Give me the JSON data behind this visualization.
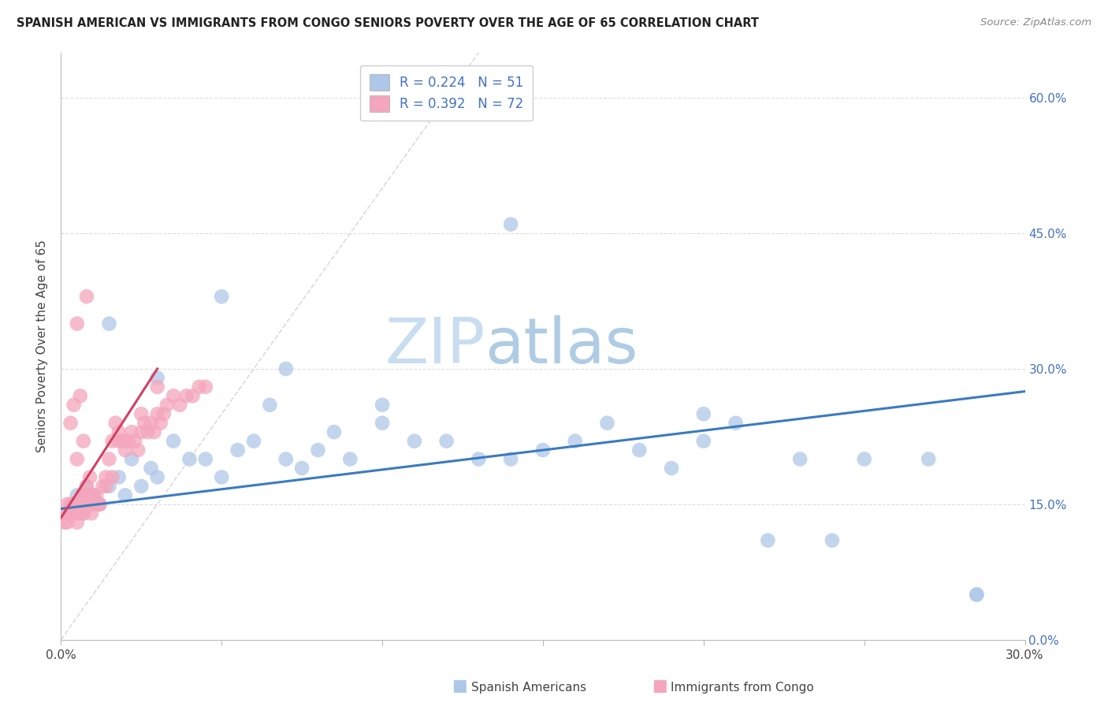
{
  "title": "SPANISH AMERICAN VS IMMIGRANTS FROM CONGO SENIORS POVERTY OVER THE AGE OF 65 CORRELATION CHART",
  "source": "Source: ZipAtlas.com",
  "ylabel_label": "Seniors Poverty Over the Age of 65",
  "legend1_label": "R = 0.224   N = 51",
  "legend2_label": "R = 0.392   N = 72",
  "legend_bottom1": "Spanish Americans",
  "legend_bottom2": "Immigrants from Congo",
  "blue_color": "#aec7e8",
  "pink_color": "#f4a6bc",
  "blue_line_color": "#3a7bbf",
  "pink_line_color": "#d4405f",
  "diag_color": "#cccccc",
  "watermark_zip_color": "#c5d8ee",
  "watermark_atlas_color": "#c5d8ee",
  "right_tick_color": "#4472c4",
  "xlim": [
    0,
    30
  ],
  "ylim_data": [
    0,
    65
  ],
  "ylim_display": [
    0,
    65
  ],
  "x_ticks": [
    0,
    5,
    10,
    15,
    20,
    25,
    30
  ],
  "x_tick_labels": [
    "0.0%",
    "",
    "",
    "",
    "",
    "",
    "30.0%"
  ],
  "y_ticks": [
    0,
    15,
    30,
    45,
    60
  ],
  "y_tick_labels": [
    "",
    "15.0%",
    "30.0%",
    "45.0%",
    "60.0%"
  ],
  "blue_x": [
    0.3,
    0.5,
    0.6,
    0.8,
    1.0,
    1.2,
    1.5,
    1.8,
    2.0,
    2.2,
    2.5,
    2.8,
    3.0,
    3.5,
    4.0,
    4.5,
    5.0,
    5.5,
    6.0,
    6.5,
    7.0,
    7.5,
    8.0,
    8.5,
    9.0,
    10.0,
    11.0,
    12.0,
    13.0,
    14.0,
    15.0,
    16.0,
    17.0,
    18.0,
    19.0,
    20.0,
    21.0,
    22.0,
    23.0,
    24.0,
    25.0,
    27.0,
    28.5,
    1.5,
    3.0,
    5.0,
    7.0,
    10.0,
    14.0,
    20.0,
    28.5
  ],
  "blue_y": [
    14,
    16,
    15,
    17,
    16,
    15,
    17,
    18,
    16,
    20,
    17,
    19,
    18,
    22,
    20,
    20,
    18,
    21,
    22,
    26,
    20,
    19,
    21,
    23,
    20,
    24,
    22,
    22,
    20,
    20,
    21,
    22,
    24,
    21,
    19,
    22,
    24,
    11,
    20,
    11,
    20,
    20,
    5,
    35,
    29,
    38,
    30,
    26,
    46,
    25,
    5
  ],
  "pink_x": [
    0.1,
    0.15,
    0.2,
    0.25,
    0.3,
    0.35,
    0.4,
    0.45,
    0.5,
    0.55,
    0.6,
    0.65,
    0.7,
    0.75,
    0.8,
    0.85,
    0.9,
    0.95,
    1.0,
    1.1,
    1.2,
    1.3,
    1.4,
    1.5,
    1.6,
    1.7,
    1.8,
    1.9,
    2.0,
    2.1,
    2.2,
    2.3,
    2.4,
    2.5,
    2.6,
    2.7,
    2.8,
    2.9,
    3.0,
    3.1,
    3.2,
    3.3,
    3.5,
    3.7,
    3.9,
    4.1,
    4.3,
    4.5,
    0.2,
    0.3,
    0.4,
    0.5,
    0.6,
    0.7,
    0.8,
    0.9,
    1.0,
    1.2,
    1.4,
    1.6,
    1.8,
    2.0,
    2.5,
    3.0,
    0.5,
    0.8,
    0.4,
    0.6,
    0.3,
    0.5,
    0.7,
    0.9
  ],
  "pink_y": [
    13,
    14,
    15,
    14,
    15,
    14,
    15,
    14,
    15,
    14,
    15,
    16,
    14,
    16,
    17,
    15,
    16,
    14,
    15,
    16,
    15,
    17,
    18,
    20,
    22,
    24,
    23,
    22,
    21,
    22,
    23,
    22,
    21,
    23,
    24,
    23,
    24,
    23,
    25,
    24,
    25,
    26,
    27,
    26,
    27,
    27,
    28,
    28,
    13,
    14,
    15,
    13,
    15,
    14,
    16,
    15,
    16,
    15,
    17,
    18,
    22,
    22,
    25,
    28,
    35,
    38,
    26,
    27,
    24,
    20,
    22,
    18
  ],
  "blue_trend": [
    0,
    14.5,
    30,
    27.5
  ],
  "pink_trend": [
    0,
    13.5,
    3.0,
    30.0
  ],
  "diag_line": [
    0,
    0,
    13.0,
    65
  ]
}
